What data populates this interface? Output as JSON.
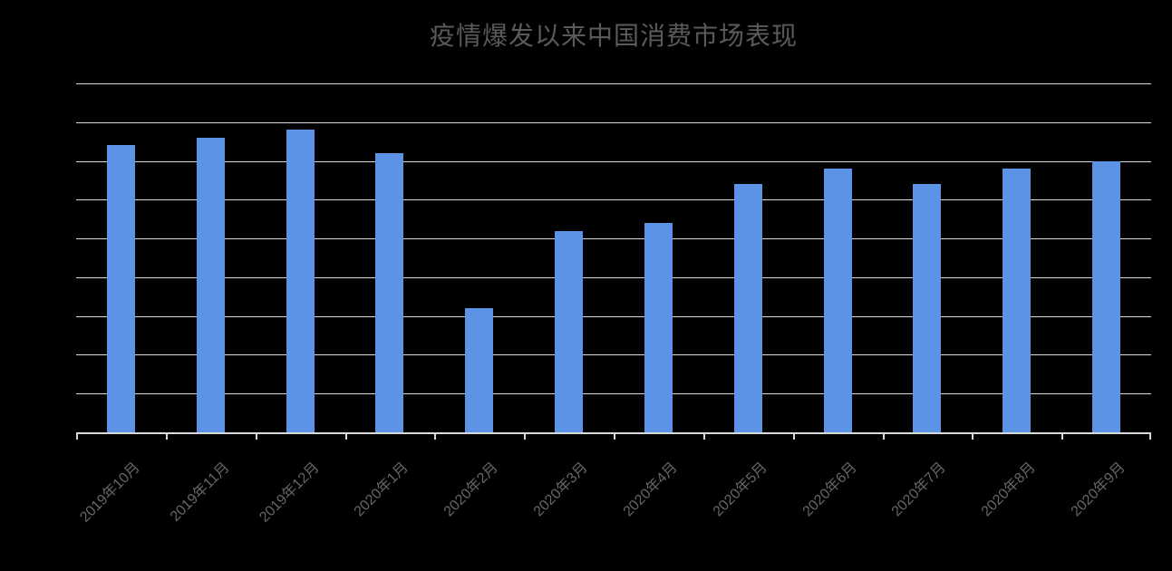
{
  "page": {
    "background_color": "#000000"
  },
  "chart_data": {
    "type": "bar",
    "title": "疫情爆发以来中国消费市场表现",
    "categories": [
      "2019年10月",
      "2019年11月",
      "2019年12月",
      "2020年1月",
      "2020年2月",
      "2020年3月",
      "2020年4月",
      "2020年5月",
      "2020年6月",
      "2020年7月",
      "2020年8月",
      "2020年9月"
    ],
    "values": [
      7.4,
      7.6,
      7.8,
      7.2,
      3.2,
      5.2,
      5.4,
      6.4,
      6.8,
      6.4,
      6.8,
      7.0
    ],
    "xlabel": "",
    "ylabel": "",
    "ylim": [
      0,
      9
    ],
    "y_gridline_step": 1,
    "y_gridline_count": 9,
    "y_tick_labels_visible": false,
    "value_note": "y-axis tick labels are not visible in the image; values are estimated in horizontal-gridline units (axis spans 9 equal gridline intervals from the baseline to the top gridline)",
    "grid": "horizontal gridlines on",
    "legend_position": "none",
    "x_label_rotation_deg": 45,
    "bar_color": "#5c93e6",
    "gridline_color": "#d9d9d9",
    "axis_color": "#d9d9d9",
    "title_color": "#5a5a5a",
    "x_label_color": "#666666"
  }
}
